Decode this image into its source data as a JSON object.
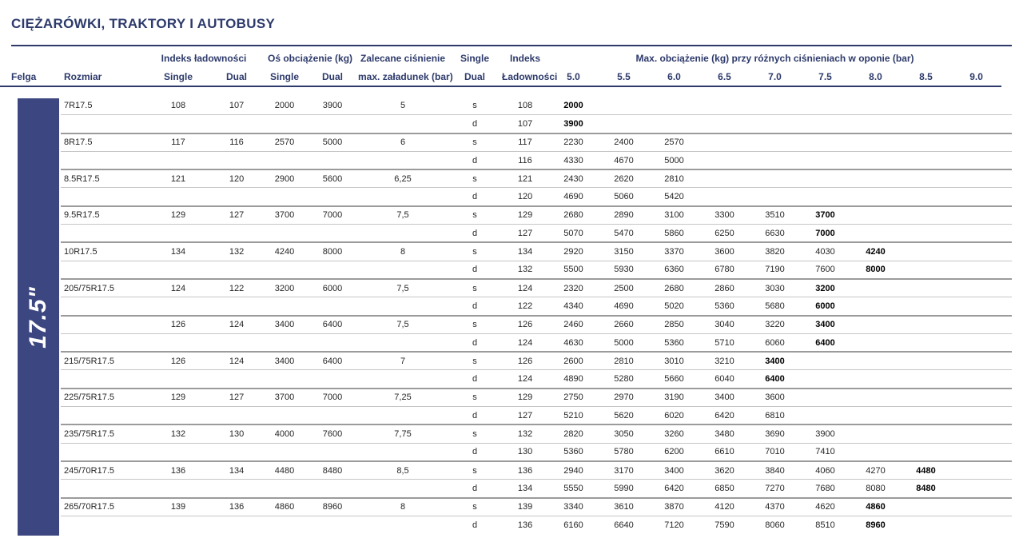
{
  "page_title": "CIĘŻARÓWKI, TRAKTORY I AUTOBUSY",
  "rim_label": "17.5\"",
  "colors": {
    "navy": "#2d3a6b",
    "rim_box": "#3c4680",
    "light_line": "#c6c6c6",
    "group_line": "#9b9b9b"
  },
  "header": {
    "felga": "Felga",
    "rozmiar": "Rozmiar",
    "indeks_ladownosci": "Indeks ładowności",
    "os_obciazenie": "Oś obciążenie (kg)",
    "zalecane_line1": "Zalecane ciśnienie",
    "zalecane_line2": "max. załadunek (bar)",
    "single": "Single",
    "dual": "Dual",
    "indeks_line1": "Indeks",
    "indeks_line2": "Ładowności",
    "max_obciazenie": "Max. obciążenie (kg) przy różnych ciśnieniach w oponie (bar)",
    "pressures": [
      "5.0",
      "5.5",
      "6.0",
      "6.5",
      "7.0",
      "7.5",
      "8.0",
      "8.5",
      "9.0"
    ]
  },
  "table": {
    "groups": [
      {
        "size": "7R17.5",
        "li_single": "108",
        "li_dual": "107",
        "axle_single": "2000",
        "axle_dual": "3900",
        "rec_pressure": "5",
        "rows": [
          {
            "sd": "s",
            "index": "108",
            "loads": [
              "2000"
            ],
            "bold": 0
          },
          {
            "sd": "d",
            "index": "107",
            "loads": [
              "3900"
            ],
            "bold": 0
          }
        ]
      },
      {
        "size": "8R17.5",
        "li_single": "117",
        "li_dual": "116",
        "axle_single": "2570",
        "axle_dual": "5000",
        "rec_pressure": "6",
        "rows": [
          {
            "sd": "s",
            "index": "117",
            "loads": [
              "2230",
              "2400",
              "2570"
            ],
            "bold": -1
          },
          {
            "sd": "d",
            "index": "116",
            "loads": [
              "4330",
              "4670",
              "5000"
            ],
            "bold": -1
          }
        ]
      },
      {
        "size": "8.5R17.5",
        "li_single": "121",
        "li_dual": "120",
        "axle_single": "2900",
        "axle_dual": "5600",
        "rec_pressure": "6,25",
        "rows": [
          {
            "sd": "s",
            "index": "121",
            "loads": [
              "2430",
              "2620",
              "2810"
            ],
            "bold": -1
          },
          {
            "sd": "d",
            "index": "120",
            "loads": [
              "4690",
              "5060",
              "5420"
            ],
            "bold": -1
          }
        ]
      },
      {
        "size": "9.5R17.5",
        "li_single": "129",
        "li_dual": "127",
        "axle_single": "3700",
        "axle_dual": "7000",
        "rec_pressure": "7,5",
        "rows": [
          {
            "sd": "s",
            "index": "129",
            "loads": [
              "2680",
              "2890",
              "3100",
              "3300",
              "3510",
              "3700"
            ],
            "bold": 5
          },
          {
            "sd": "d",
            "index": "127",
            "loads": [
              "5070",
              "5470",
              "5860",
              "6250",
              "6630",
              "7000"
            ],
            "bold": 5
          }
        ]
      },
      {
        "size": "10R17.5",
        "li_single": "134",
        "li_dual": "132",
        "axle_single": "4240",
        "axle_dual": "8000",
        "rec_pressure": "8",
        "rows": [
          {
            "sd": "s",
            "index": "134",
            "loads": [
              "2920",
              "3150",
              "3370",
              "3600",
              "3820",
              "4030",
              "4240"
            ],
            "bold": 6
          },
          {
            "sd": "d",
            "index": "132",
            "loads": [
              "5500",
              "5930",
              "6360",
              "6780",
              "7190",
              "7600",
              "8000"
            ],
            "bold": 6
          }
        ]
      },
      {
        "size": "205/75R17.5",
        "li_single": "124",
        "li_dual": "122",
        "axle_single": "3200",
        "axle_dual": "6000",
        "rec_pressure": "7,5",
        "rows": [
          {
            "sd": "s",
            "index": "124",
            "loads": [
              "2320",
              "2500",
              "2680",
              "2860",
              "3030",
              "3200"
            ],
            "bold": 5
          },
          {
            "sd": "d",
            "index": "122",
            "loads": [
              "4340",
              "4690",
              "5020",
              "5360",
              "5680",
              "6000"
            ],
            "bold": 5
          }
        ]
      },
      {
        "size": "",
        "li_single": "126",
        "li_dual": "124",
        "axle_single": "3400",
        "axle_dual": "6400",
        "rec_pressure": "7,5",
        "rows": [
          {
            "sd": "s",
            "index": "126",
            "loads": [
              "2460",
              "2660",
              "2850",
              "3040",
              "3220",
              "3400"
            ],
            "bold": 5
          },
          {
            "sd": "d",
            "index": "124",
            "loads": [
              "4630",
              "5000",
              "5360",
              "5710",
              "6060",
              "6400"
            ],
            "bold": 5
          }
        ]
      },
      {
        "size": "215/75R17.5",
        "li_single": "126",
        "li_dual": "124",
        "axle_single": "3400",
        "axle_dual": "6400",
        "rec_pressure": "7",
        "rows": [
          {
            "sd": "s",
            "index": "126",
            "loads": [
              "2600",
              "2810",
              "3010",
              "3210",
              "3400"
            ],
            "bold": 4
          },
          {
            "sd": "d",
            "index": "124",
            "loads": [
              "4890",
              "5280",
              "5660",
              "6040",
              "6400"
            ],
            "bold": 4
          }
        ]
      },
      {
        "size": "225/75R17.5",
        "li_single": "129",
        "li_dual": "127",
        "axle_single": "3700",
        "axle_dual": "7000",
        "rec_pressure": "7,25",
        "rows": [
          {
            "sd": "s",
            "index": "129",
            "loads": [
              "2750",
              "2970",
              "3190",
              "3400",
              "3600"
            ],
            "bold": -1
          },
          {
            "sd": "d",
            "index": "127",
            "loads": [
              "5210",
              "5620",
              "6020",
              "6420",
              "6810"
            ],
            "bold": -1
          }
        ]
      },
      {
        "size": "235/75R17.5",
        "li_single": "132",
        "li_dual": "130",
        "axle_single": "4000",
        "axle_dual": "7600",
        "rec_pressure": "7,75",
        "rows": [
          {
            "sd": "s",
            "index": "132",
            "loads": [
              "2820",
              "3050",
              "3260",
              "3480",
              "3690",
              "3900"
            ],
            "bold": -1
          },
          {
            "sd": "d",
            "index": "130",
            "loads": [
              "5360",
              "5780",
              "6200",
              "6610",
              "7010",
              "7410"
            ],
            "bold": -1
          }
        ]
      },
      {
        "size": "245/70R17.5",
        "li_single": "136",
        "li_dual": "134",
        "axle_single": "4480",
        "axle_dual": "8480",
        "rec_pressure": "8,5",
        "rows": [
          {
            "sd": "s",
            "index": "136",
            "loads": [
              "2940",
              "3170",
              "3400",
              "3620",
              "3840",
              "4060",
              "4270",
              "4480"
            ],
            "bold": 7
          },
          {
            "sd": "d",
            "index": "134",
            "loads": [
              "5550",
              "5990",
              "6420",
              "6850",
              "7270",
              "7680",
              "8080",
              "8480"
            ],
            "bold": 7
          }
        ]
      },
      {
        "size": "265/70R17.5",
        "li_single": "139",
        "li_dual": "136",
        "axle_single": "4860",
        "axle_dual": "8960",
        "rec_pressure": "8",
        "rows": [
          {
            "sd": "s",
            "index": "139",
            "loads": [
              "3340",
              "3610",
              "3870",
              "4120",
              "4370",
              "4620",
              "4860"
            ],
            "bold": 6
          },
          {
            "sd": "d",
            "index": "136",
            "loads": [
              "6160",
              "6640",
              "7120",
              "7590",
              "8060",
              "8510",
              "8960"
            ],
            "bold": 6
          }
        ]
      }
    ]
  }
}
